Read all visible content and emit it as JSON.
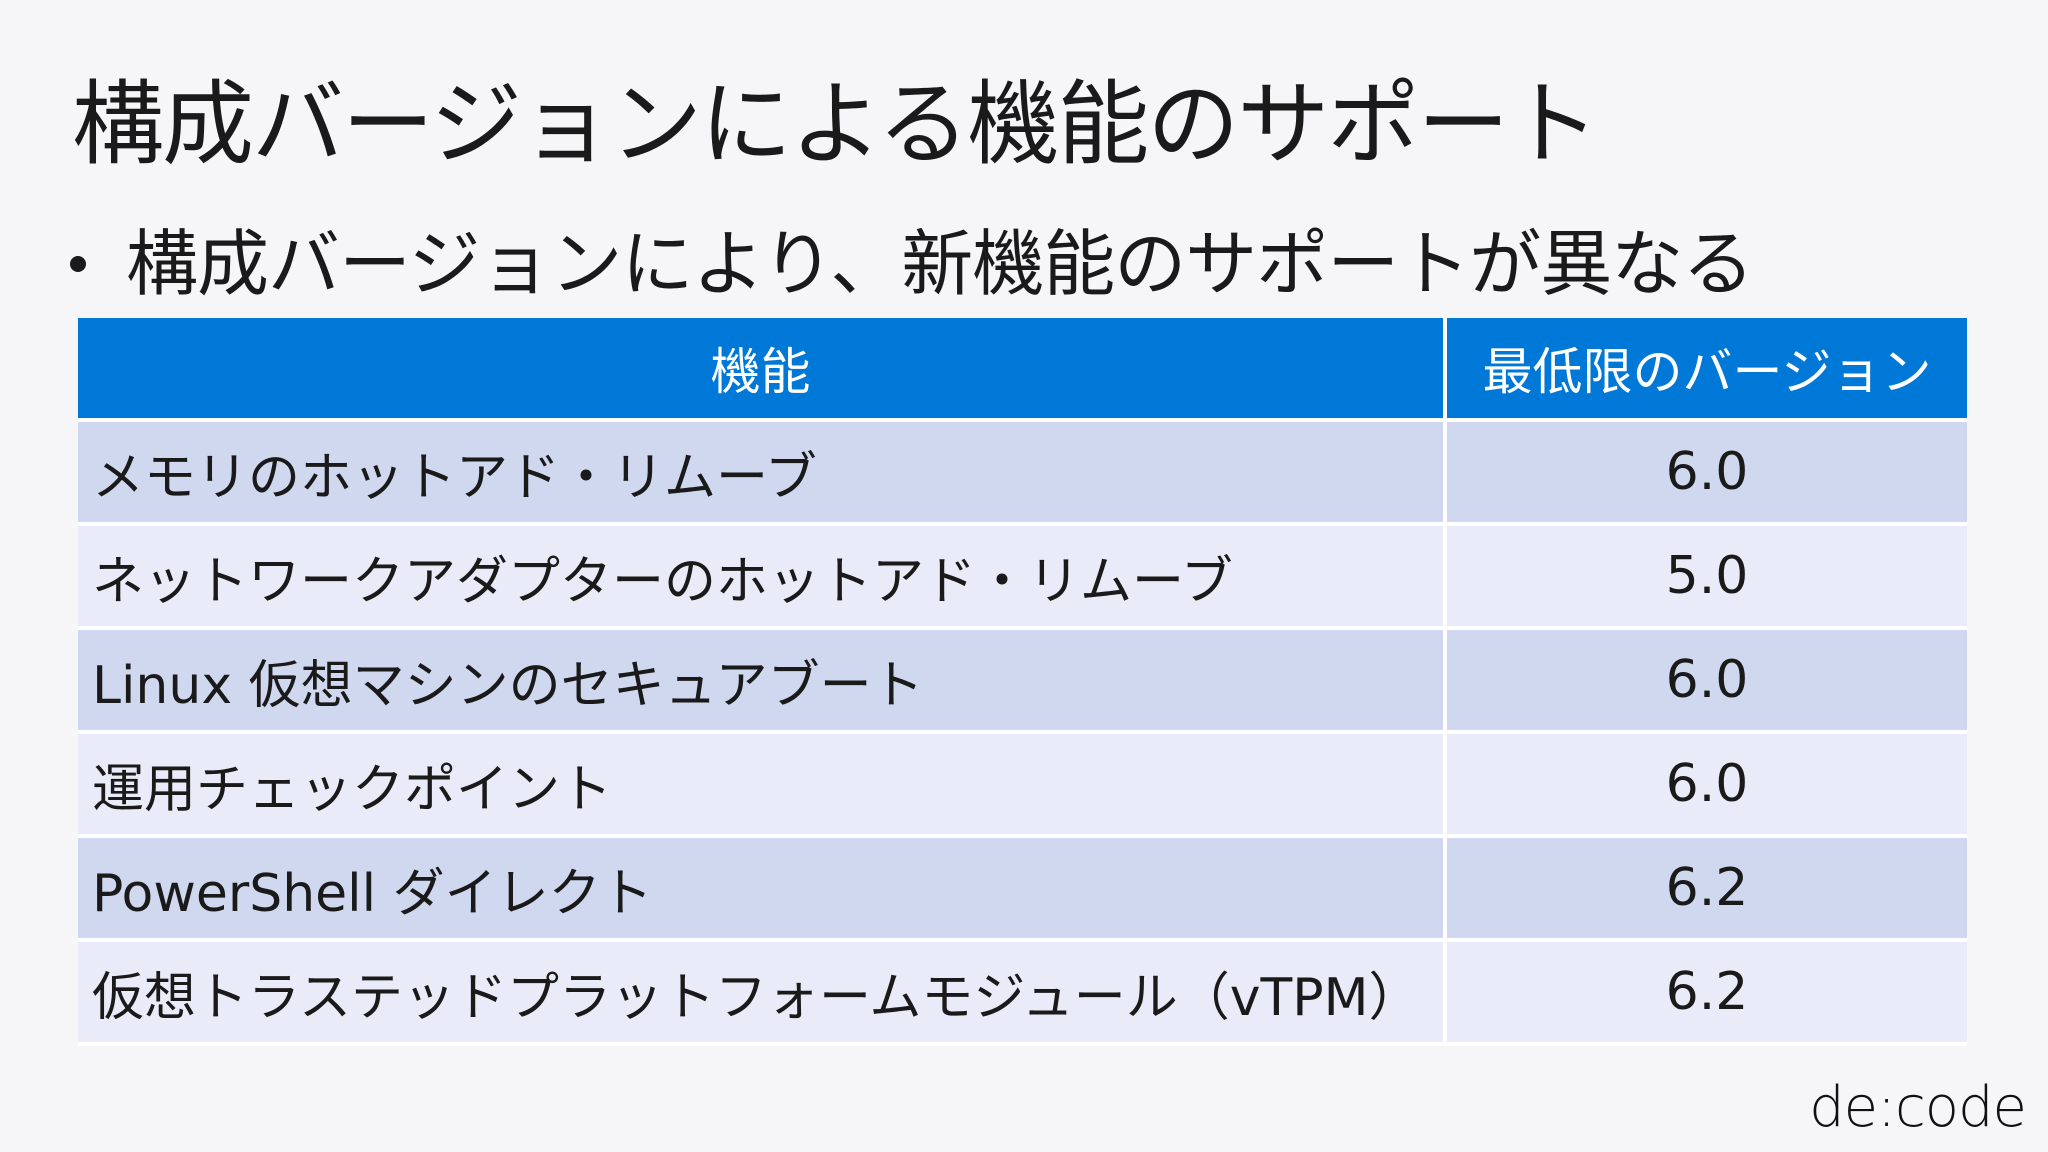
{
  "slide": {
    "title": "構成バージョンによる機能のサポート",
    "bullet": "構成バージョンにより、新機能のサポートが異なる"
  },
  "table": {
    "headers": [
      "機能",
      "最低限のバージョン"
    ],
    "rows": [
      {
        "feature": "メモリのホットアド・リムーブ",
        "version": "6.0"
      },
      {
        "feature": "ネットワークアダプターのホットアド・リムーブ",
        "version": "5.0"
      },
      {
        "feature": "Linux 仮想マシンのセキュアブート",
        "version": "6.0"
      },
      {
        "feature": "運用チェックポイント",
        "version": "6.0"
      },
      {
        "feature": "PowerShell ダイレクト",
        "version": "6.2"
      },
      {
        "feature": "仮想トラステッドプラットフォームモジュール（vTPM）",
        "version": "6.2"
      }
    ]
  },
  "logo": "de:code",
  "colors": {
    "header": "#0078d7",
    "row_odd": "#cfd8ef",
    "row_even": "#e9ecf8"
  }
}
